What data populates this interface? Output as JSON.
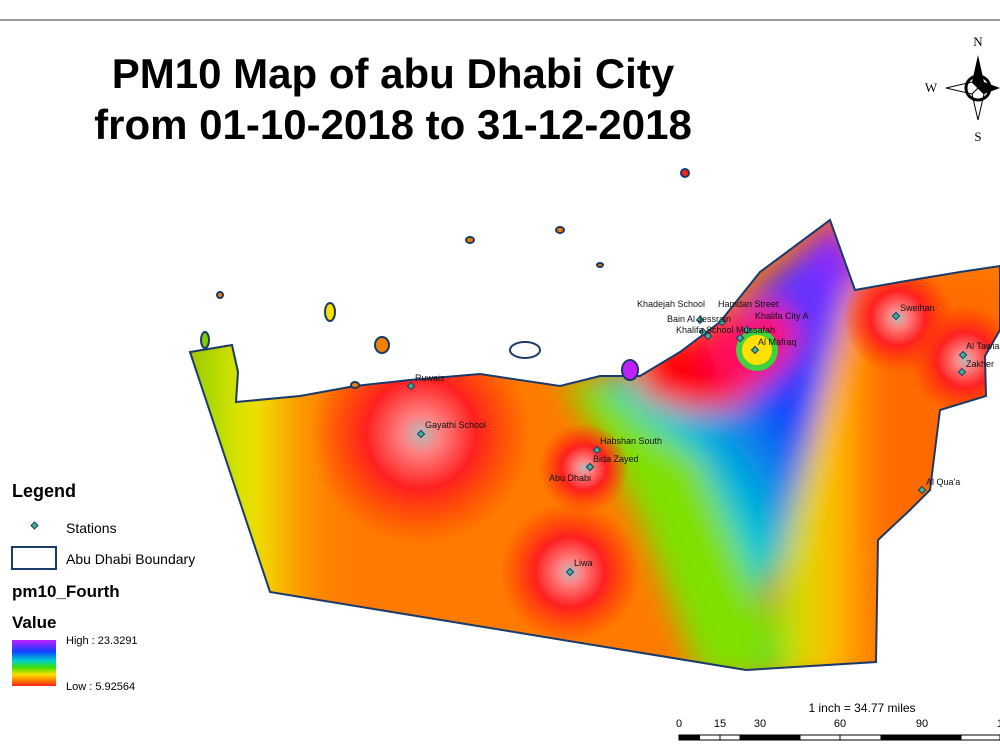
{
  "title": {
    "line1": "PM10 Map of abu Dhabi City",
    "line2": "from 01-10-2018 to 31-12-2018"
  },
  "compass": {
    "n": "N",
    "w": "W",
    "s": "S"
  },
  "legend": {
    "heading": "Legend",
    "items": [
      "Stations",
      "Abu Dhabi Boundary"
    ],
    "layer": "pm10_Fourth",
    "field": "Value",
    "high": "High : 23.3291",
    "low": "Low : 5.92564"
  },
  "scale": {
    "text": "1 inch = 34.77 miles",
    "ticks": [
      "0",
      "15",
      "30",
      "60",
      "90",
      "1"
    ]
  },
  "stations": [
    "Ruwais",
    "Gayathi School",
    "Habshan South",
    "Bida Zayed",
    "Abu Dhabi",
    "Liwa",
    "Khadejah School",
    "Hamdan Street",
    "Bain Al Jessrain",
    "Khalifa City A",
    "Khalifa School",
    "Mussafah",
    "Al Mafraq",
    "Sweihan",
    "Al Tawia",
    "Zakher",
    "Al Qua'a"
  ]
}
